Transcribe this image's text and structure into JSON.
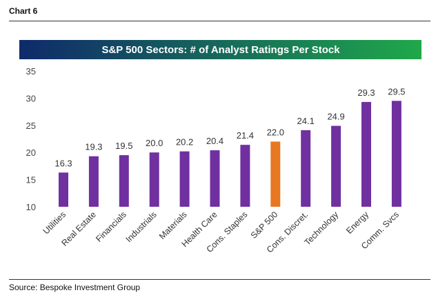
{
  "header": {
    "chart_label": "Chart 6"
  },
  "footer": {
    "source": "Source: Bespoke Investment Group"
  },
  "colors": {
    "bar": "#7030A0",
    "highlight_bar": "#E87722",
    "title_gradient_start": "#0F2A6B",
    "title_gradient_end": "#1FA84A"
  },
  "chart_data": {
    "type": "bar",
    "title": "S&P 500 Sectors: # of Analyst Ratings Per Stock",
    "categories": [
      "Utilities",
      "Real Estate",
      "Financials",
      "Industrials",
      "Materials",
      "Health Care",
      "Cons. Staples",
      "S&P 500",
      "Cons. Discret.",
      "Technology",
      "Energy",
      "Comm. Svcs"
    ],
    "values": [
      16.3,
      19.3,
      19.5,
      20.0,
      20.2,
      20.4,
      21.4,
      22.0,
      24.1,
      24.9,
      29.3,
      29.5
    ],
    "value_labels": [
      "16.3",
      "19.3",
      "19.5",
      "20.0",
      "20.2",
      "20.4",
      "21.4",
      "22.0",
      "24.1",
      "24.9",
      "29.3",
      "29.5"
    ],
    "highlight_category": "S&P 500",
    "ylim": [
      10,
      35
    ],
    "yticks": [
      "10",
      "15",
      "20",
      "25",
      "30",
      "35"
    ],
    "grid": false,
    "xlabel": "",
    "ylabel": ""
  }
}
